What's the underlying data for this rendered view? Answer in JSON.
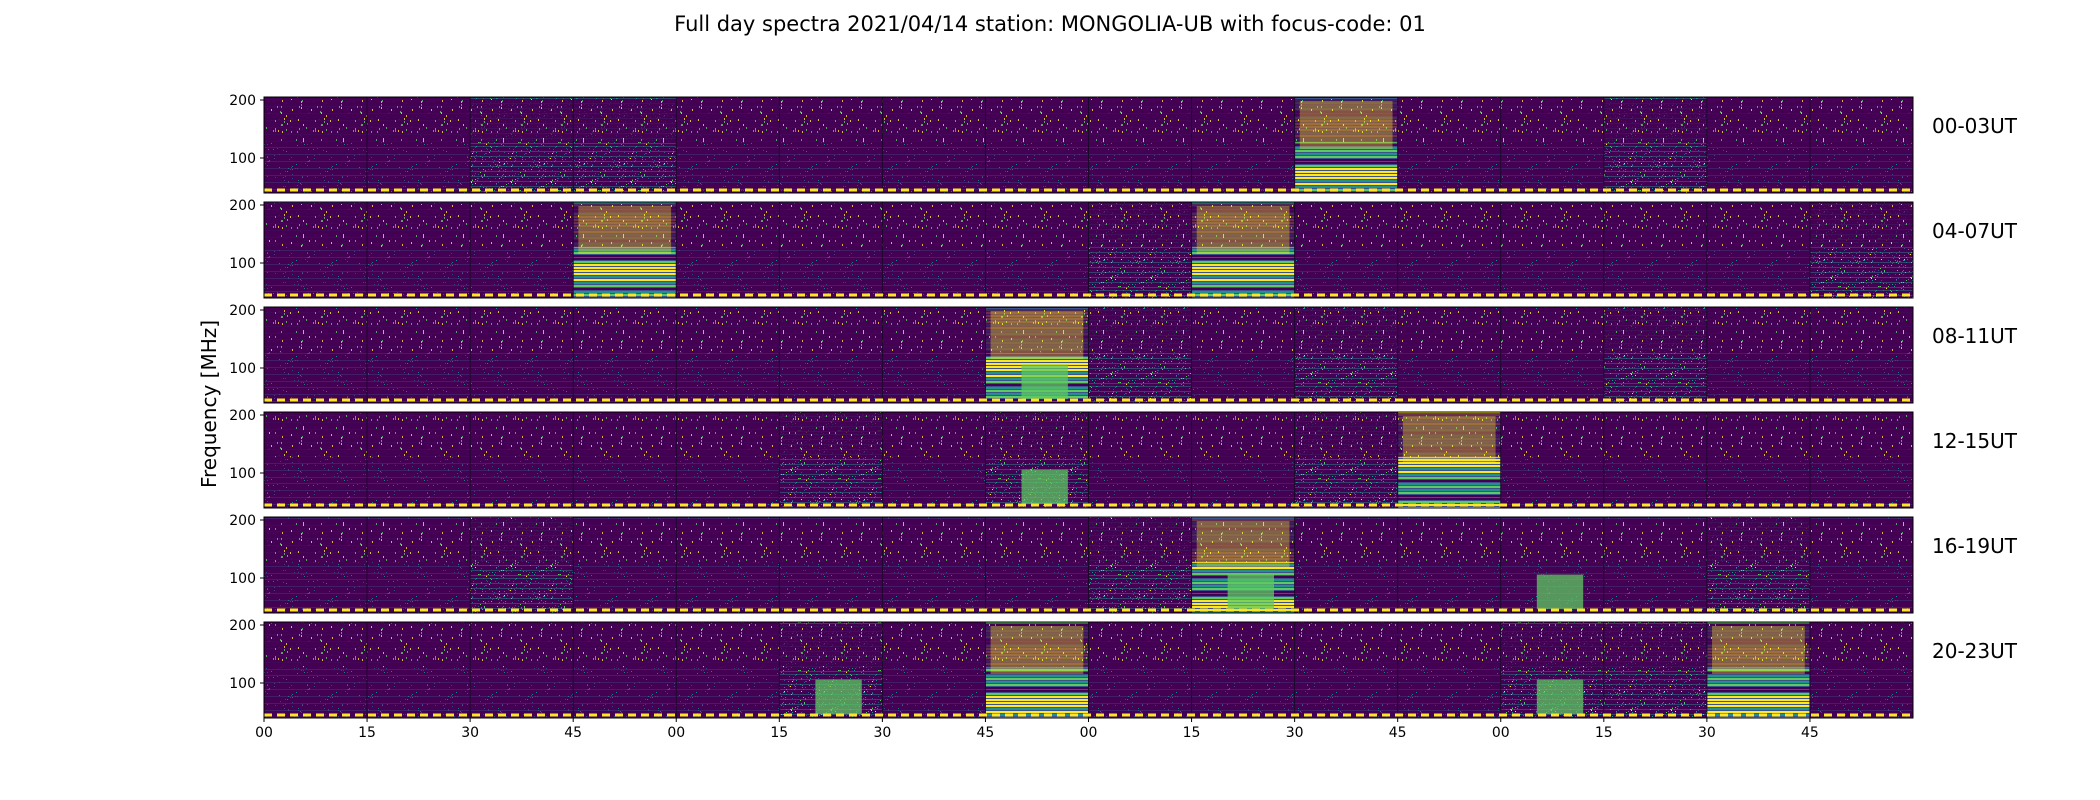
{
  "chart_data": {
    "type": "heatmap",
    "title": "Full day spectra 2021/04/14 station: MONGOLIA-UB with focus-code: 01",
    "ylabel": "Frequency [MHz]",
    "yticks": [
      "200",
      "100"
    ],
    "xticks": [
      "00",
      "15",
      "30",
      "45",
      "00",
      "15",
      "30",
      "45",
      "00",
      "15",
      "30",
      "45",
      "00",
      "15",
      "30",
      "45"
    ],
    "rows": [
      {
        "label": "00-03UT",
        "hot_segments": [
          10
        ],
        "mid_segments": [
          2,
          3,
          13
        ],
        "bright_bottom_segments": []
      },
      {
        "label": "04-07UT",
        "hot_segments": [
          3,
          9
        ],
        "mid_segments": [
          8,
          15
        ],
        "bright_bottom_segments": []
      },
      {
        "label": "08-11UT",
        "hot_segments": [
          7
        ],
        "mid_segments": [
          8,
          10,
          13
        ],
        "bright_bottom_segments": [
          7
        ]
      },
      {
        "label": "12-15UT",
        "hot_segments": [
          11
        ],
        "mid_segments": [
          5,
          7,
          10
        ],
        "bright_bottom_segments": [
          7
        ]
      },
      {
        "label": "16-19UT",
        "hot_segments": [
          9
        ],
        "mid_segments": [
          2,
          8,
          14
        ],
        "bright_bottom_segments": [
          9,
          12
        ]
      },
      {
        "label": "20-23UT",
        "hot_segments": [
          7,
          14
        ],
        "mid_segments": [
          5,
          12,
          13
        ],
        "bright_bottom_segments": [
          5,
          12
        ]
      }
    ],
    "colormap": [
      "#440154",
      "#3b528b",
      "#21918c",
      "#5ec962",
      "#fde725"
    ],
    "marker_color": "#fde725"
  }
}
